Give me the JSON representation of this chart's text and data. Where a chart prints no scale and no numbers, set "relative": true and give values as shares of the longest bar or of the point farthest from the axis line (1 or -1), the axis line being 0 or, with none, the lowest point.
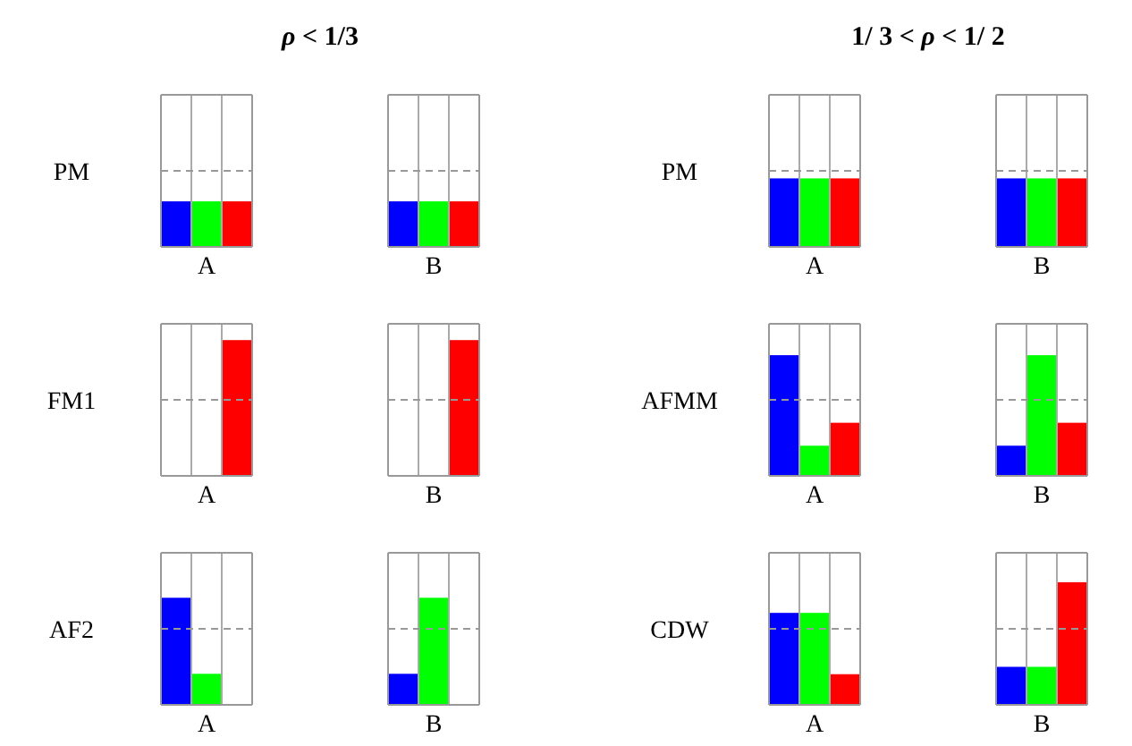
{
  "chart_data": [
    {
      "type": "bar",
      "title": "ρ < 1/3",
      "ylabel": "PM",
      "categories": [
        "A",
        "B"
      ],
      "relative": true,
      "ref_lines": [
        {
          "axis": "y",
          "value": 1.67,
          "line_style": "dashed"
        }
      ],
      "series": [
        {
          "color": "#0000ff",
          "values": [
            1,
            1
          ]
        },
        {
          "color": "#00ff00",
          "values": [
            1,
            1
          ]
        },
        {
          "color": "#ff0000",
          "values": [
            1,
            1
          ]
        }
      ]
    },
    {
      "type": "bar",
      "title": "1/ 3 < ρ < 1/ 2",
      "ylabel": "PM",
      "categories": [
        "A",
        "B"
      ],
      "relative": true,
      "ref_lines": [
        {
          "axis": "y",
          "value": 1.11,
          "line_style": "dashed"
        }
      ],
      "series": [
        {
          "color": "#0000ff",
          "values": [
            1,
            1
          ]
        },
        {
          "color": "#00ff00",
          "values": [
            1,
            1
          ]
        },
        {
          "color": "#ff0000",
          "values": [
            1,
            1
          ]
        }
      ]
    },
    {
      "type": "bar",
      "ylabel": "FM1",
      "categories": [
        "A",
        "B"
      ],
      "relative": true,
      "ref_lines": [
        {
          "axis": "y",
          "value": 0.56,
          "line_style": "dashed"
        }
      ],
      "series": [
        {
          "color": "#0000ff",
          "values": [
            0,
            0
          ]
        },
        {
          "color": "#00ff00",
          "values": [
            0,
            0
          ]
        },
        {
          "color": "#ff0000",
          "values": [
            1,
            1
          ]
        }
      ]
    },
    {
      "type": "bar",
      "ylabel": "AFMM",
      "categories": [
        "A",
        "B"
      ],
      "relative": true,
      "ref_lines": [
        {
          "axis": "y",
          "value": 0.63,
          "line_style": "dashed"
        }
      ],
      "series": [
        {
          "color": "#0000ff",
          "values": [
            1,
            0.25
          ]
        },
        {
          "color": "#00ff00",
          "values": [
            0.25,
            1
          ]
        },
        {
          "color": "#ff0000",
          "values": [
            0.44,
            0.44
          ]
        }
      ]
    },
    {
      "type": "bar",
      "ylabel": "AF2",
      "categories": [
        "A",
        "B"
      ],
      "relative": true,
      "ref_lines": [
        {
          "axis": "y",
          "value": 0.71,
          "line_style": "dashed"
        }
      ],
      "series": [
        {
          "color": "#0000ff",
          "values": [
            1,
            0.29
          ]
        },
        {
          "color": "#00ff00",
          "values": [
            0.29,
            1
          ]
        },
        {
          "color": "#ff0000",
          "values": [
            0,
            0
          ]
        }
      ]
    },
    {
      "type": "bar",
      "ylabel": "CDW",
      "categories": [
        "A",
        "B"
      ],
      "relative": true,
      "ref_lines": [
        {
          "axis": "y",
          "value": 0.62,
          "line_style": "dashed"
        }
      ],
      "series": [
        {
          "color": "#0000ff",
          "values": [
            0.75,
            0.31
          ]
        },
        {
          "color": "#00ff00",
          "values": [
            0.75,
            0.31
          ]
        },
        {
          "color": "#ff0000",
          "values": [
            0.25,
            1
          ]
        }
      ]
    }
  ]
}
